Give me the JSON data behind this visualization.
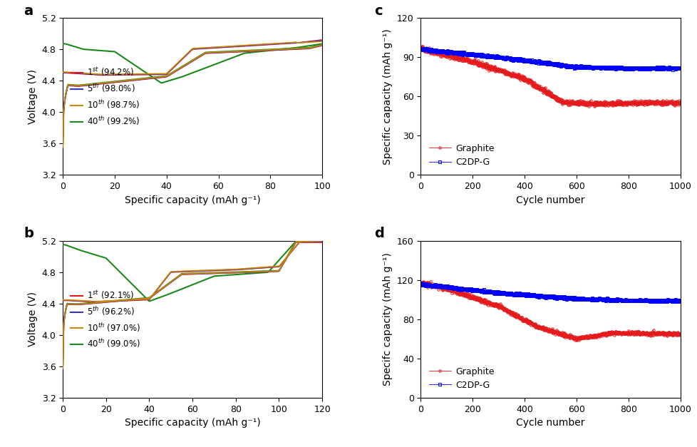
{
  "panel_a": {
    "xlabel": "Specific capacity (mAh g⁻¹)",
    "ylabel": "Voltage (V)",
    "xlim": [
      0,
      100
    ],
    "ylim": [
      3.2,
      5.2
    ],
    "yticks": [
      3.2,
      3.6,
      4.0,
      4.4,
      4.8,
      5.2
    ],
    "xticks": [
      0,
      20,
      40,
      60,
      80,
      100
    ],
    "legend_colors": [
      "#e41a1c",
      "#3333cc",
      "#cc8800",
      "#1a8a1a"
    ],
    "curve_colors": [
      "#e41a1c",
      "#3333cc",
      "#cc8800",
      "#1a8a1a"
    ],
    "legend_entries": [
      "1$^{st}$ (94.2%)",
      "5$^{th}$ (98.0%)",
      "10$^{th}$ (98.7%)",
      "40$^{th}$ (99.2%)"
    ]
  },
  "panel_b": {
    "xlabel": "Specific capacity (mAh g⁻¹)",
    "ylabel": "Voltage (V)",
    "xlim": [
      0,
      120
    ],
    "ylim": [
      3.2,
      5.2
    ],
    "yticks": [
      3.2,
      3.6,
      4.0,
      4.4,
      4.8,
      5.2
    ],
    "xticks": [
      0,
      20,
      40,
      60,
      80,
      100,
      120
    ],
    "legend_colors": [
      "#e41a1c",
      "#3333cc",
      "#cc8800",
      "#1a8a1a"
    ],
    "curve_colors": [
      "#e41a1c",
      "#3333cc",
      "#cc8800",
      "#1a8a1a"
    ],
    "legend_entries": [
      "1$^{st}$ (92.1%)",
      "5$^{th}$ (96.2%)",
      "10$^{th}$ (97.0%)",
      "40$^{th}$ (99.0%)"
    ]
  },
  "panel_c": {
    "xlabel": "Cycle number",
    "ylabel": "Specific capacity (mAh g⁻¹)",
    "xlim": [
      0,
      1000
    ],
    "ylim": [
      0,
      120
    ],
    "yticks": [
      0,
      30,
      60,
      90,
      120
    ],
    "xticks": [
      0,
      200,
      400,
      600,
      800,
      1000
    ],
    "legend_entries": [
      "Graphite",
      "C2DP-G"
    ],
    "legend_colors": [
      "#e41a1c",
      "#0000ff"
    ]
  },
  "panel_d": {
    "xlabel": "Cycle number",
    "ylabel": "Specifc capacity (mAh g⁻¹)",
    "xlim": [
      0,
      1000
    ],
    "ylim": [
      0,
      160
    ],
    "yticks": [
      0,
      40,
      80,
      120,
      160
    ],
    "xticks": [
      0,
      200,
      400,
      600,
      800,
      1000
    ],
    "legend_entries": [
      "Graphite",
      "C2DP-G"
    ],
    "legend_colors": [
      "#e41a1c",
      "#0000ff"
    ]
  }
}
